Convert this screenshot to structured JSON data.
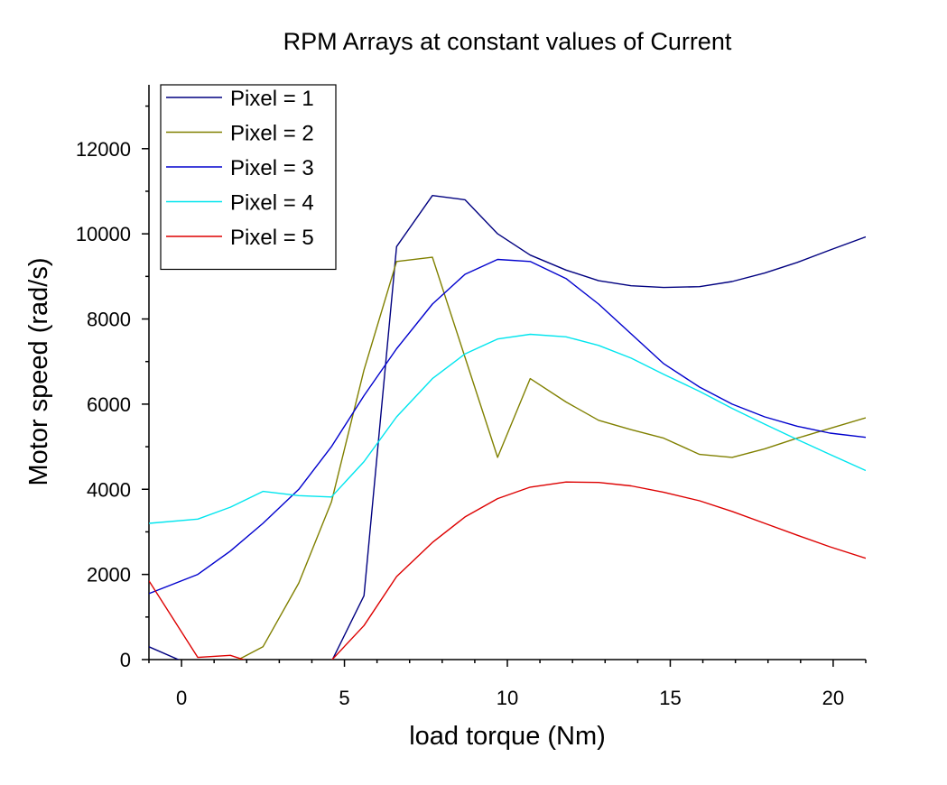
{
  "chart_data": {
    "type": "line",
    "title": "RPM Arrays at constant values of Current",
    "xlabel": "load torque (Nm)",
    "ylabel": "Motor speed (rad/s)",
    "xlim": [
      -1,
      21
    ],
    "ylim": [
      0,
      13500
    ],
    "xticks": [
      0,
      5,
      10,
      15,
      20
    ],
    "yticks": [
      0,
      2000,
      4000,
      6000,
      8000,
      10000,
      12000
    ],
    "grid": false,
    "legend_position": "top-left",
    "series": [
      {
        "name": "Pixel = 1",
        "color": "#000080",
        "x": [
          -1,
          0.5,
          1.5,
          2.5,
          3.6,
          4.6,
          5.6,
          6.6,
          7.7,
          8.7,
          9.7,
          10.7,
          11.8,
          12.8,
          13.8,
          14.8,
          15.9,
          16.9,
          17.9,
          18.9,
          19.9,
          21
        ],
        "y": [
          300,
          -200,
          -150,
          -100,
          -80,
          -50,
          1500,
          9700,
          10900,
          10800,
          10000,
          9500,
          9150,
          8900,
          8780,
          8740,
          8760,
          8880,
          9080,
          9330,
          9620,
          9930
        ]
      },
      {
        "name": "Pixel = 2",
        "color": "#808000",
        "x": [
          -1,
          0.5,
          1.5,
          2.5,
          3.6,
          4.6,
          5.6,
          6.6,
          7.7,
          8.7,
          9.7,
          10.7,
          11.8,
          12.8,
          13.8,
          14.8,
          15.9,
          16.9,
          17.9,
          18.9,
          19.9,
          21
        ],
        "y": [
          -200,
          -150,
          -100,
          300,
          1800,
          3700,
          6800,
          9350,
          9450,
          7100,
          4750,
          6600,
          6050,
          5620,
          5400,
          5200,
          4820,
          4750,
          4950,
          5200,
          5430,
          5680
        ]
      },
      {
        "name": "Pixel = 3",
        "color": "#0000CD",
        "x": [
          -1,
          0.5,
          1.5,
          2.5,
          3.6,
          4.6,
          5.6,
          6.6,
          7.7,
          8.7,
          9.7,
          10.7,
          11.8,
          12.8,
          13.8,
          14.8,
          15.9,
          16.9,
          17.9,
          18.9,
          19.9,
          21
        ],
        "y": [
          1550,
          2000,
          2550,
          3200,
          4000,
          5000,
          6200,
          7300,
          8350,
          9050,
          9400,
          9350,
          8950,
          8350,
          7650,
          6950,
          6400,
          6000,
          5700,
          5480,
          5320,
          5220
        ]
      },
      {
        "name": "Pixel = 4",
        "color": "#00E5EE",
        "x": [
          -1,
          0.5,
          1.5,
          2.5,
          3.6,
          4.6,
          5.6,
          6.6,
          7.7,
          8.7,
          9.7,
          10.7,
          11.8,
          12.8,
          13.8,
          14.8,
          15.9,
          16.9,
          17.9,
          18.9,
          19.9,
          21
        ],
        "y": [
          3200,
          3300,
          3580,
          3950,
          3850,
          3820,
          4650,
          5700,
          6600,
          7180,
          7530,
          7640,
          7580,
          7380,
          7080,
          6700,
          6300,
          5900,
          5530,
          5170,
          4820,
          4440
        ]
      },
      {
        "name": "Pixel = 5",
        "color": "#DD0000",
        "x": [
          -1,
          0.5,
          1.5,
          2.5,
          3.6,
          4.6,
          5.6,
          6.6,
          7.7,
          8.7,
          9.7,
          10.7,
          11.8,
          12.8,
          13.8,
          14.8,
          15.9,
          16.9,
          17.9,
          18.9,
          19.9,
          21
        ],
        "y": [
          1850,
          50,
          100,
          -150,
          -100,
          -20,
          800,
          1950,
          2750,
          3350,
          3780,
          4050,
          4170,
          4160,
          4080,
          3930,
          3730,
          3480,
          3200,
          2920,
          2650,
          2380
        ]
      }
    ]
  }
}
